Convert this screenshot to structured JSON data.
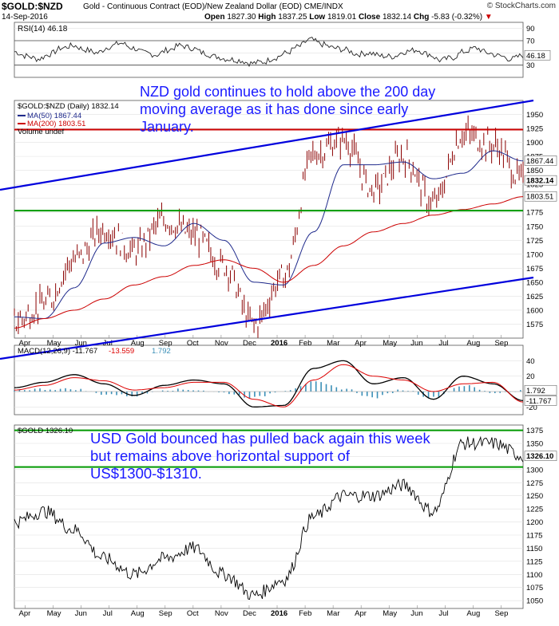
{
  "header": {
    "symbol": "$GOLD:$NZD",
    "subtitle": "Gold - Continuous Contract (EOD)/New Zealand Dollar (EOD) CME/INDX",
    "brand": "© StockCharts.com",
    "date": "14-Sep-2016",
    "open_label": "Open",
    "open": "1827.30",
    "high_label": "High",
    "high": "1837.25",
    "low_label": "Low",
    "low": "1819.01",
    "close_label": "Close",
    "close": "1832.14",
    "chg_label": "Chg",
    "chg": "-5.83 (-0.32%)"
  },
  "annotations": {
    "nzd": "NZD gold continues to hold above the 200 day moving average as it has done since early January.",
    "usd": "USD Gold bounced has pulled back again this week but remains above horizontal support of US$1300-$1310."
  },
  "colors": {
    "price": "#8b0000",
    "ma50": "#1f2a8c",
    "ma200": "#cc0000",
    "trend": "#0000dd",
    "resistance": "#cc0000",
    "support": "#009900",
    "macd_hist": "#3a8fb7",
    "annotation": "#1a1aff"
  },
  "chart_data": [
    {
      "type": "line",
      "title": "RSI(14) 46.18",
      "legend": "RSI(14) 46.18",
      "ylim": [
        10,
        100
      ],
      "yticks": [
        90,
        70,
        50,
        30
      ],
      "overbought": 70,
      "oversold": 30,
      "last_label": "46.18",
      "series": [
        {
          "name": "RSI(14)",
          "values": [
            52,
            45,
            40,
            48,
            58,
            62,
            55,
            50,
            60,
            66,
            58,
            50,
            47,
            55,
            62,
            58,
            50,
            44,
            40,
            38,
            33,
            35,
            42,
            50,
            60,
            72,
            64,
            58,
            55,
            48,
            50,
            45,
            44,
            52,
            55,
            48,
            38,
            42,
            52,
            58,
            50,
            45,
            40,
            46
          ]
        }
      ]
    },
    {
      "type": "line",
      "title": "$GOLD:$NZD (Daily) 1832.14",
      "ylim": [
        1550,
        1975
      ],
      "yticks": [
        1950,
        1925,
        1900,
        1875,
        1850,
        1825,
        1800,
        1775,
        1750,
        1725,
        1700,
        1675,
        1650,
        1625,
        1600,
        1575
      ],
      "legend": [
        "$GOLD:$NZD (Daily) 1832.14",
        "MA(50) 1867.44",
        "MA(200) 1803.51",
        "Volume undef"
      ],
      "x_labels": [
        "Apr",
        "May",
        "Jun",
        "Jul",
        "Aug",
        "Sep",
        "Oct",
        "Nov",
        "Dec",
        "2016",
        "Feb",
        "Mar",
        "Apr",
        "May",
        "Jun",
        "Jul",
        "Aug",
        "Sep"
      ],
      "horizontal_lines": [
        {
          "name": "resistance",
          "value": 1923
        },
        {
          "name": "support",
          "value": 1778
        }
      ],
      "trendlines": [
        {
          "name": "upper-channel",
          "from": [
            "2015-03",
            1715
          ],
          "to": [
            "2016-09",
            1960
          ]
        },
        {
          "name": "lower-channel",
          "from": [
            "2015-03",
            1530
          ],
          "to": [
            "2016-09",
            1640
          ]
        }
      ],
      "last_labels": [
        "1867.44",
        "1832.14",
        "1803.51"
      ],
      "x": [
        "2015-04",
        "2015-05",
        "2015-06",
        "2015-07",
        "2015-08",
        "2015-09",
        "2015-10",
        "2015-11",
        "2015-12",
        "2016-01",
        "2016-02",
        "2016-03",
        "2016-04",
        "2016-05",
        "2016-06",
        "2016-07",
        "2016-08",
        "2016-09"
      ],
      "series": [
        {
          "name": "$GOLD:$NZD",
          "values": [
            1580,
            1610,
            1690,
            1745,
            1705,
            1760,
            1735,
            1680,
            1575,
            1660,
            1880,
            1905,
            1815,
            1875,
            1790,
            1915,
            1895,
            1832
          ]
        },
        {
          "name": "MA(50)",
          "values": [
            1588,
            1585,
            1640,
            1720,
            1730,
            1715,
            1755,
            1725,
            1650,
            1645,
            1740,
            1860,
            1860,
            1865,
            1835,
            1845,
            1885,
            1867
          ]
        },
        {
          "name": "MA(200)",
          "values": [
            1568,
            1585,
            1600,
            1620,
            1645,
            1660,
            1680,
            1690,
            1675,
            1650,
            1680,
            1715,
            1740,
            1755,
            1770,
            1780,
            1790,
            1803
          ]
        }
      ]
    },
    {
      "type": "line",
      "title": "MACD(12,26,9) -11.767, -13.559, 1.792",
      "legend": [
        "MACD(12,26,9) -11.767",
        "-13.559",
        "1.792"
      ],
      "ylim": [
        -30,
        60
      ],
      "yticks": [
        40,
        20,
        0,
        -20
      ],
      "last_labels": [
        "1.792",
        "-11.767"
      ],
      "series": [
        {
          "name": "MACD",
          "values": [
            5,
            12,
            22,
            10,
            -5,
            8,
            15,
            10,
            -20,
            -18,
            30,
            40,
            10,
            18,
            -10,
            20,
            10,
            -11.767
          ]
        },
        {
          "name": "Signal",
          "values": [
            2,
            8,
            18,
            14,
            2,
            5,
            12,
            12,
            -10,
            -20,
            15,
            35,
            20,
            15,
            0,
            10,
            12,
            -13.559
          ]
        },
        {
          "name": "Histogram",
          "values": [
            3,
            4,
            4,
            -4,
            -7,
            3,
            3,
            -2,
            -10,
            2,
            15,
            5,
            -10,
            3,
            -10,
            10,
            -2,
            1.792
          ]
        }
      ]
    },
    {
      "type": "line",
      "title": "$GOLD 1326.10",
      "legend": "$GOLD 1326.10",
      "ylim": [
        1035,
        1385
      ],
      "yticks": [
        1375,
        1350,
        1325,
        1300,
        1275,
        1250,
        1225,
        1200,
        1175,
        1150,
        1125,
        1100,
        1075,
        1050
      ],
      "x_labels": [
        "Apr",
        "May",
        "Jun",
        "Jul",
        "Aug",
        "Sep",
        "Oct",
        "Nov",
        "Dec",
        "2016",
        "Feb",
        "Mar",
        "Apr",
        "May",
        "Jun",
        "Jul",
        "Aug",
        "Sep"
      ],
      "horizontal_lines": [
        {
          "name": "resistance",
          "value": 1375
        },
        {
          "name": "support",
          "value": 1305
        }
      ],
      "last_label": "1326.10",
      "x": [
        "2015-04",
        "2015-05",
        "2015-06",
        "2015-07",
        "2015-08",
        "2015-09",
        "2015-10",
        "2015-11",
        "2015-12",
        "2016-01",
        "2016-02",
        "2016-03",
        "2016-04",
        "2016-05",
        "2016-06",
        "2016-07",
        "2016-08",
        "2016-09"
      ],
      "series": [
        {
          "name": "$GOLD",
          "values": [
            1200,
            1220,
            1185,
            1130,
            1100,
            1130,
            1150,
            1100,
            1060,
            1090,
            1210,
            1250,
            1250,
            1270,
            1220,
            1350,
            1350,
            1326
          ]
        }
      ]
    }
  ]
}
